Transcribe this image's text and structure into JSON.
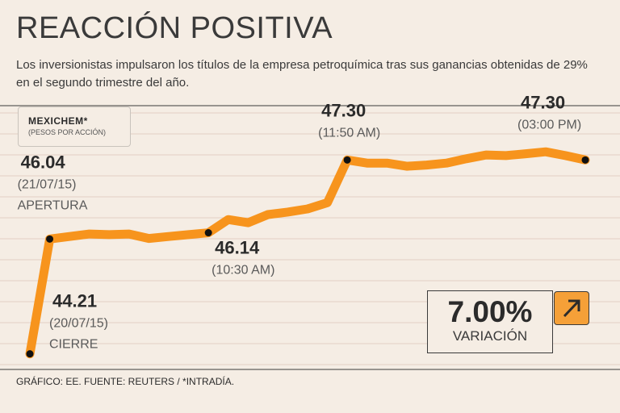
{
  "header": {
    "title": "REACCIÓN POSITIVA",
    "subtitle": "Los inversionistas impulsaron los títulos de la empresa petroquímica tras sus ganancias obtenidas de 29% en el segundo trimestre del año."
  },
  "legend": {
    "ticker": "MEXICHEM*",
    "unit": "(PESOS POR ACCIÓN)"
  },
  "variation": {
    "value": "7.00%",
    "label": "VARIACIÓN",
    "icon": "arrow-up-right-icon"
  },
  "footer": {
    "source": "GRÁFICO: EE. FUENTE: REUTERS / *INTRADÍA."
  },
  "colors": {
    "line": "#f7941d",
    "background": "#f5ede4",
    "marker": "#111111"
  },
  "chart_data": {
    "type": "line",
    "title": "REACCIÓN POSITIVA",
    "ylabel": "Pesos por acción",
    "ylim": [
      44.0,
      47.6
    ],
    "series": [
      {
        "name": "MEXICHEM*",
        "values": [
          44.21,
          46.04,
          46.08,
          46.12,
          46.11,
          46.12,
          46.05,
          46.08,
          46.11,
          46.14,
          46.35,
          46.3,
          46.43,
          46.47,
          46.52,
          46.62,
          47.3,
          47.25,
          47.25,
          47.2,
          47.22,
          47.25,
          47.32,
          47.38,
          47.37,
          47.4,
          47.43,
          47.37,
          47.3
        ]
      }
    ],
    "annotations": [
      {
        "index": 0,
        "value": "44.21",
        "sub": "(20/07/15)",
        "tag": "CIERRE"
      },
      {
        "index": 1,
        "value": "46.04",
        "sub": "(21/07/15)",
        "tag": "APERTURA"
      },
      {
        "index": 9,
        "value": "46.14",
        "sub": "(10:30 AM)",
        "tag": ""
      },
      {
        "index": 16,
        "value": "47.30",
        "sub": "(11:50 AM)",
        "tag": ""
      },
      {
        "index": 28,
        "value": "47.30",
        "sub": "(03:00 PM)",
        "tag": ""
      }
    ]
  }
}
